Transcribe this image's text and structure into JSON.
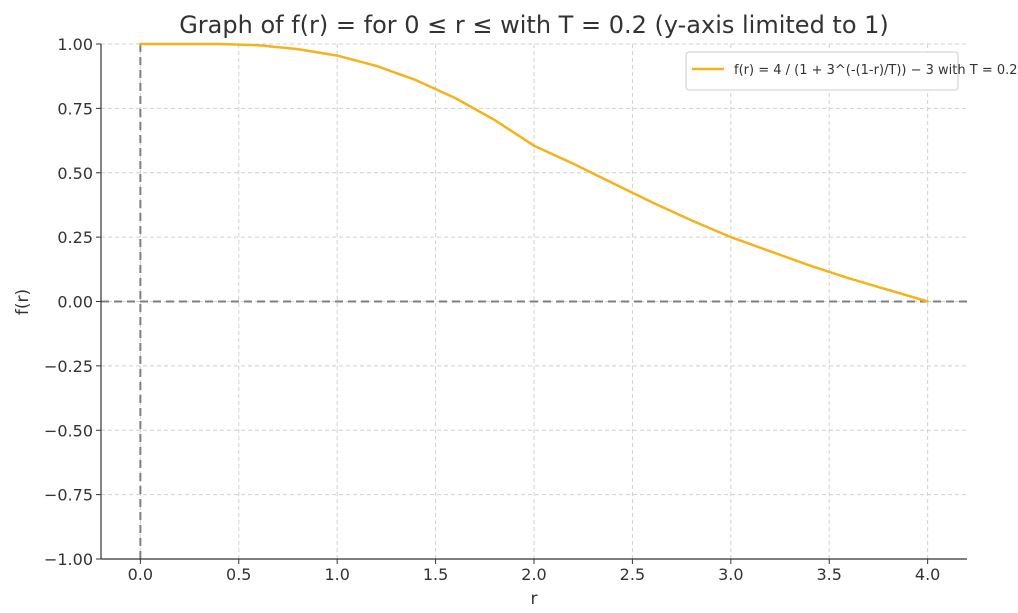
{
  "chart_data": {
    "type": "line",
    "title": "Graph of f(r) =  for 0 ≤ r ≤  with T = 0.2 (y-axis limited to 1)",
    "xlabel": "r",
    "ylabel": "f(r)",
    "xlim": [
      -0.2,
      4.2
    ],
    "ylim": [
      -1.0,
      1.0
    ],
    "xticks": [
      0.0,
      0.5,
      1.0,
      1.5,
      2.0,
      2.5,
      3.0,
      3.5,
      4.0
    ],
    "xtick_labels": [
      "0.0",
      "0.5",
      "1.0",
      "1.5",
      "2.0",
      "2.5",
      "3.0",
      "3.5",
      "4.0"
    ],
    "yticks": [
      1.0,
      0.75,
      0.5,
      0.25,
      0.0,
      -0.25,
      -0.5,
      -0.75,
      -1.0
    ],
    "ytick_labels": [
      "1.00",
      "0.75",
      "0.50",
      "0.25",
      "0.00",
      "−0.25",
      "−0.50",
      "−0.75",
      "−1.00"
    ],
    "grid": true,
    "legend_position": "top-right",
    "reference_lines": [
      {
        "orientation": "horizontal",
        "value": 0.0,
        "style": "dashed",
        "color": "#7f7f7f"
      },
      {
        "orientation": "vertical",
        "value": 0.0,
        "style": "dashed",
        "color": "#7f7f7f"
      }
    ],
    "series": [
      {
        "name": "f(r) = 4 / (1 + 3^(-(1-r)/T)) − 3 with T = 0.2",
        "color": "#f5b21a",
        "x": [
          0.0,
          0.2,
          0.4,
          0.6,
          0.8,
          1.0,
          1.2,
          1.4,
          1.6,
          1.8,
          2.0,
          2.2,
          2.4,
          2.6,
          2.8,
          3.0,
          3.2,
          3.4,
          3.6,
          3.8,
          4.0
        ],
        "y": [
          1.0,
          1.0,
          1.0,
          0.995,
          0.98,
          0.955,
          0.915,
          0.86,
          0.79,
          0.705,
          0.605,
          0.535,
          0.46,
          0.385,
          0.315,
          0.25,
          0.195,
          0.14,
          0.09,
          0.045,
          0.0
        ]
      }
    ]
  }
}
